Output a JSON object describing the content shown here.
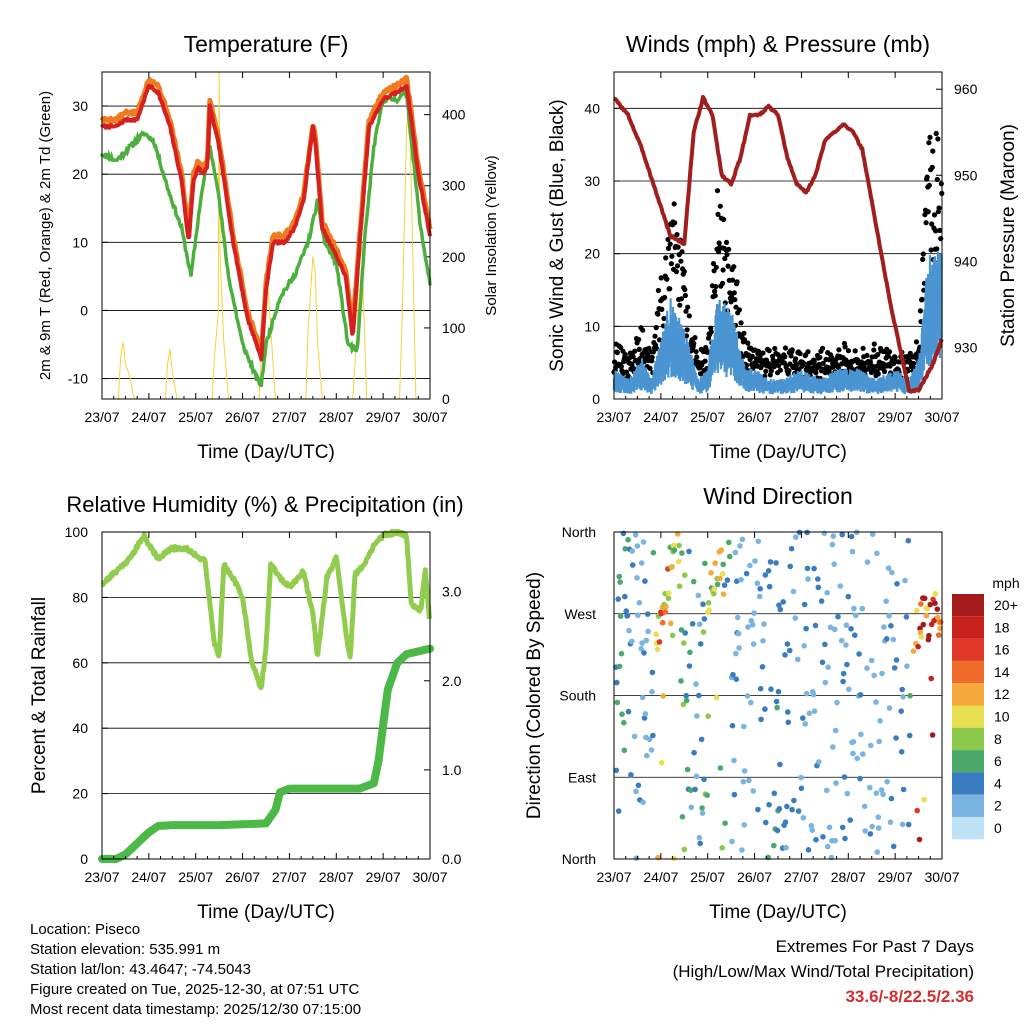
{
  "colors": {
    "t2m": "#d62020",
    "t9m": "#f07a20",
    "td": "#4cae3c",
    "solar": "#f5d23a",
    "gust": "#000000",
    "wind": "#4a94d2",
    "pressure": "#a11e1e",
    "rh": "#92cc4e",
    "precip": "#4cb848",
    "extremes": "#d32f2f"
  },
  "time_ticks": [
    "23/07",
    "24/07",
    "25/07",
    "26/07",
    "27/07",
    "28/07",
    "29/07",
    "30/07"
  ],
  "charts": {
    "temperature": {
      "title": "Temperature (F)",
      "xlabel": "Time (Day/UTC)",
      "ylabel_left": "2m & 9m T (Red, Orange) & 2m Td (Green)",
      "ylabel_right": "Solar Insolation (Yellow)",
      "yticks_left": [
        "-10",
        "0",
        "10",
        "20",
        "30"
      ],
      "yticks_right": [
        "0",
        "100",
        "200",
        "300",
        "400"
      ]
    },
    "winds": {
      "title": "Winds (mph) & Pressure (mb)",
      "xlabel": "Time (Day/UTC)",
      "ylabel_left": "Sonic Wind & Gust (Blue, Black)",
      "ylabel_right": "Station Pressure (Maroon)",
      "yticks_left": [
        "0",
        "10",
        "20",
        "30",
        "40"
      ],
      "yticks_right": [
        "930",
        "940",
        "950",
        "960"
      ]
    },
    "humidity": {
      "title": "Relative Humidity (%) & Precipitation (in)",
      "xlabel": "Time (Day/UTC)",
      "ylabel_left": "Percent & Total Rainfall",
      "yticks_left": [
        "0",
        "20",
        "40",
        "60",
        "80",
        "100"
      ],
      "yticks_right": [
        "0.0",
        "1.0",
        "2.0",
        "3.0"
      ]
    },
    "direction": {
      "title": "Wind Direction",
      "xlabel": "Time (Day/UTC)",
      "ylabel_left": "Direction (Colored By Speed)",
      "yticks_left": [
        "North",
        "East",
        "South",
        "West",
        "North"
      ],
      "legend_title": "mph",
      "legend_labels": [
        "20+",
        "18",
        "16",
        "14",
        "12",
        "10",
        "8",
        "6",
        "4",
        "2",
        "0"
      ],
      "legend_colors": [
        "#a51b1b",
        "#c8201f",
        "#e03828",
        "#f06a2a",
        "#f5a83c",
        "#e8e050",
        "#8cc84c",
        "#4aa86a",
        "#3a7cc0",
        "#7ab4e0",
        "#bfe2f6"
      ]
    }
  },
  "chart_data": [
    {
      "type": "line",
      "title": "Temperature (F)",
      "xlabel": "Time (Day/UTC)",
      "ylabel": "2m & 9m T (Red, Orange) & 2m Td (Green)",
      "y2label": "Solar Insolation (Yellow)",
      "xlim": [
        0,
        7
      ],
      "ylim": [
        -13,
        35
      ],
      "y2lim": [
        0,
        460
      ],
      "series": [
        {
          "name": "2m T",
          "x": [
            0,
            0.3,
            0.5,
            0.75,
            1.0,
            1.2,
            1.45,
            1.7,
            1.85,
            1.95,
            2.05,
            2.15,
            2.25,
            2.3,
            2.5,
            2.8,
            3.1,
            3.3,
            3.4,
            3.5,
            3.65,
            3.9,
            4.1,
            4.3,
            4.5,
            4.55,
            4.7,
            5.0,
            5.2,
            5.35,
            5.5,
            5.7,
            6.0,
            6.3,
            6.5,
            6.6,
            6.75,
            7.0
          ],
          "values": [
            27,
            27,
            28,
            28,
            33,
            32,
            27,
            19,
            10,
            19,
            21,
            20,
            21,
            30,
            24,
            10,
            -1,
            -5,
            -7,
            3,
            10,
            10,
            12,
            16,
            27,
            25,
            12,
            8,
            5,
            -4,
            10,
            27,
            31,
            32,
            33,
            28,
            20,
            11
          ]
        },
        {
          "name": "9m T",
          "x": [
            0,
            0.3,
            0.5,
            0.75,
            1.0,
            1.2,
            1.45,
            1.7,
            1.85,
            1.95,
            2.05,
            2.15,
            2.25,
            2.3,
            2.5,
            2.8,
            3.1,
            3.3,
            3.4,
            3.5,
            3.65,
            3.9,
            4.1,
            4.3,
            4.5,
            4.55,
            4.7,
            5.0,
            5.2,
            5.35,
            5.5,
            5.7,
            6.0,
            6.3,
            6.5,
            6.6,
            6.75,
            7.0
          ],
          "values": [
            28,
            28,
            29,
            29,
            34,
            33,
            28,
            20,
            11,
            20,
            22,
            21,
            22,
            31,
            25,
            11,
            0,
            -4,
            -6,
            4,
            11,
            11,
            13,
            17,
            27,
            26,
            13,
            9,
            6,
            -3,
            11,
            28,
            32,
            33,
            34,
            29,
            21,
            12
          ]
        },
        {
          "name": "2m Td",
          "x": [
            0,
            0.3,
            0.6,
            0.9,
            1.1,
            1.4,
            1.7,
            1.9,
            2.1,
            2.3,
            2.45,
            2.7,
            3.0,
            3.3,
            3.4,
            3.5,
            3.8,
            4.1,
            4.4,
            4.6,
            4.75,
            5.0,
            5.25,
            5.45,
            5.6,
            5.8,
            6.0,
            6.3,
            6.5,
            6.6,
            6.8,
            7.0
          ],
          "values": [
            23,
            22,
            24,
            26,
            25,
            18,
            12,
            5,
            16,
            24,
            19,
            5,
            -5,
            -10,
            -11,
            -5,
            2,
            5,
            10,
            16,
            10,
            7,
            -5,
            -6,
            10,
            24,
            31,
            31,
            32,
            25,
            12,
            4
          ]
        },
        {
          "name": "Solar Insolation",
          "axis": "y2",
          "x": [
            0,
            0.35,
            0.4,
            0.45,
            0.5,
            0.55,
            0.6,
            0.65,
            0.7,
            1.35,
            1.4,
            1.45,
            1.5,
            1.55,
            1.6,
            2.35,
            2.4,
            2.48,
            2.5,
            2.52,
            2.6,
            2.7,
            3.35,
            3.4,
            3.5,
            3.55,
            3.6,
            3.7,
            4.35,
            4.4,
            4.5,
            4.55,
            4.6,
            4.7,
            5.35,
            5.45,
            5.5,
            5.55,
            5.65,
            6.35,
            6.4,
            6.5,
            6.55,
            6.6,
            6.7,
            7.0
          ],
          "values": [
            0,
            0,
            60,
            80,
            50,
            40,
            30,
            10,
            0,
            0,
            50,
            70,
            40,
            20,
            0,
            0,
            60,
            120,
            460,
            200,
            80,
            0,
            0,
            60,
            180,
            150,
            100,
            0,
            0,
            100,
            200,
            180,
            80,
            0,
            0,
            100,
            250,
            200,
            0,
            0,
            100,
            380,
            420,
            300,
            0,
            0
          ]
        }
      ]
    },
    {
      "type": "line",
      "title": "Winds (mph) & Pressure (mb)",
      "xlabel": "Time (Day/UTC)",
      "ylabel": "Sonic Wind & Gust (Blue, Black)",
      "y2label": "Station Pressure (Maroon)",
      "xlim": [
        0,
        7
      ],
      "ylim": [
        0,
        45
      ],
      "y2lim": [
        924,
        962
      ],
      "series": [
        {
          "name": "Station Pressure",
          "axis": "y2",
          "x": [
            0,
            0.3,
            0.6,
            0.9,
            1.2,
            1.5,
            1.7,
            1.9,
            2.1,
            2.3,
            2.5,
            2.7,
            2.9,
            3.1,
            3.3,
            3.5,
            3.7,
            3.9,
            4.1,
            4.3,
            4.5,
            4.7,
            4.9,
            5.1,
            5.3,
            5.5,
            5.7,
            5.9,
            6.1,
            6.3,
            6.5,
            6.7,
            6.8,
            7.0
          ],
          "values": [
            959,
            957,
            953,
            948,
            943,
            942,
            955,
            959,
            957,
            950,
            949,
            952,
            957,
            957,
            958,
            957,
            952,
            949,
            948,
            950,
            954,
            955,
            956,
            955,
            953,
            947,
            941,
            935,
            930,
            925,
            925,
            927,
            928,
            931
          ]
        },
        {
          "name": "Sonic Wind",
          "x": [
            0,
            0.3,
            0.6,
            0.8,
            1.0,
            1.2,
            1.5,
            1.8,
            2.0,
            2.2,
            2.5,
            2.8,
            3.0,
            3.3,
            3.6,
            4.0,
            4.4,
            4.8,
            5.2,
            5.6,
            6.0,
            6.3,
            6.5,
            6.7,
            7.0
          ],
          "values": [
            3,
            2,
            4,
            2,
            6,
            10,
            7,
            2,
            3,
            10,
            9,
            3,
            3,
            2,
            2,
            3,
            2,
            3,
            3,
            2,
            3,
            2,
            4,
            14,
            15
          ]
        },
        {
          "name": "Gust",
          "x": [
            0,
            0.3,
            0.6,
            0.8,
            1.0,
            1.2,
            1.4,
            1.6,
            1.8,
            2.0,
            2.2,
            2.4,
            2.6,
            2.8,
            3.0,
            3.3,
            3.6,
            4.0,
            4.4,
            4.8,
            5.2,
            5.6,
            6.0,
            6.3,
            6.5,
            6.7,
            6.9,
            7.0
          ],
          "values": [
            6,
            5,
            8,
            5,
            14,
            24,
            20,
            10,
            5,
            6,
            24,
            20,
            15,
            6,
            6,
            5,
            6,
            5,
            5,
            6,
            5,
            6,
            5,
            5,
            7,
            30,
            32,
            28
          ]
        }
      ]
    },
    {
      "type": "line",
      "title": "Relative Humidity (%) & Precipitation (in)",
      "xlabel": "Time (Day/UTC)",
      "ylabel": "Percent & Total Rainfall",
      "xlim": [
        0,
        7
      ],
      "ylim": [
        0,
        100
      ],
      "y2lim": [
        0,
        3.67
      ],
      "series": [
        {
          "name": "Relative Humidity",
          "x": [
            0,
            0.3,
            0.6,
            0.9,
            1.0,
            1.2,
            1.5,
            1.8,
            2.0,
            2.2,
            2.4,
            2.5,
            2.6,
            2.8,
            3.0,
            3.2,
            3.4,
            3.5,
            3.6,
            3.8,
            4.0,
            4.3,
            4.5,
            4.6,
            4.8,
            5.0,
            5.2,
            5.3,
            5.4,
            5.6,
            5.8,
            6.0,
            6.3,
            6.5,
            6.6,
            6.8,
            6.9,
            7.0
          ],
          "values": [
            84,
            88,
            92,
            99,
            96,
            92,
            95,
            95,
            93,
            91,
            66,
            62,
            90,
            86,
            80,
            60,
            52,
            65,
            90,
            86,
            83,
            88,
            75,
            62,
            86,
            92,
            70,
            61,
            87,
            90,
            96,
            99,
            100,
            99,
            78,
            76,
            88,
            72
          ]
        },
        {
          "name": "Total Rainfall",
          "axis": "y2",
          "x": [
            0,
            0.3,
            0.5,
            0.7,
            0.9,
            1.0,
            1.2,
            1.5,
            2.0,
            2.5,
            3.0,
            3.5,
            3.7,
            3.8,
            4.0,
            4.5,
            5.0,
            5.5,
            5.8,
            5.9,
            6.0,
            6.1,
            6.3,
            6.5,
            7.0
          ],
          "values": [
            0.0,
            0.0,
            0.05,
            0.15,
            0.25,
            0.3,
            0.37,
            0.38,
            0.38,
            0.38,
            0.39,
            0.4,
            0.55,
            0.75,
            0.79,
            0.79,
            0.79,
            0.79,
            0.85,
            1.1,
            1.5,
            1.9,
            2.2,
            2.3,
            2.36
          ]
        }
      ]
    },
    {
      "type": "scatter",
      "title": "Wind Direction",
      "xlabel": "Time (Day/UTC)",
      "ylabel": "Direction (Colored By Speed)",
      "xlim": [
        0,
        7
      ],
      "ylim": [
        0,
        360
      ],
      "series": [
        {
          "name": "Direction (deg)",
          "x": [
            0.2,
            0.3,
            0.5,
            0.8,
            1.0,
            1.1,
            1.2,
            1.3,
            1.5,
            1.8,
            2.1,
            2.2,
            2.3,
            2.5,
            2.8,
            3.0,
            3.3,
            3.6,
            4.0,
            4.3,
            4.6,
            5.0,
            5.3,
            5.6,
            6.0,
            6.3,
            6.5,
            6.7,
            6.9
          ],
          "values": [
            205,
            220,
            215,
            230,
            255,
            285,
            320,
            340,
            330,
            300,
            290,
            310,
            320,
            285,
            240,
            200,
            40,
            30,
            25,
            60,
            35,
            45,
            30,
            200,
            190,
            205,
            260,
            265,
            270
          ],
          "speeds": [
            6,
            4,
            3,
            3,
            14,
            14,
            12,
            10,
            6,
            3,
            10,
            12,
            10,
            4,
            3,
            2,
            6,
            4,
            3,
            4,
            2,
            3,
            3,
            2,
            4,
            3,
            18,
            20,
            16
          ]
        }
      ]
    }
  ],
  "info": {
    "location": "Location: Piseco",
    "elevation": "Station elevation: 535.991 m",
    "latlon": "Station lat/lon: 43.4647; -74.5043",
    "created": "Figure created on Tue, 2025-12-30, at 07:51 UTC",
    "timestamp": "Most recent data timestamp: 2025/12/30 07:15:00"
  },
  "extremes": {
    "title": "Extremes For Past 7 Days",
    "subtitle": "(High/Low/Max Wind/Total Precipitation)",
    "value": "33.6/-8/22.5/2.36"
  }
}
